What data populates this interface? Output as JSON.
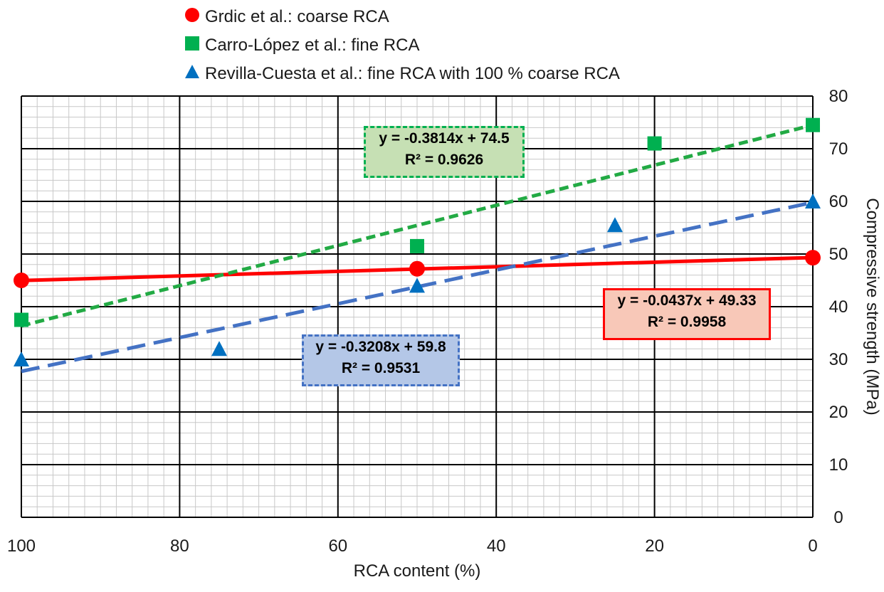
{
  "chart_data": {
    "type": "scatter",
    "xlabel": "RCA content (%)",
    "ylabel": "Compressive strength (MPa)",
    "xlim": [
      100,
      0
    ],
    "ylim": [
      0,
      80
    ],
    "x_reversed": true,
    "x_ticks": [
      "100",
      "80",
      "60",
      "40",
      "20",
      "0"
    ],
    "y_ticks": [
      "0",
      "10",
      "20",
      "30",
      "40",
      "50",
      "60",
      "70",
      "80"
    ],
    "y_axis_side": "right",
    "grid": true,
    "legend_position": "top",
    "series": [
      {
        "name": "Grdic et al.: coarse RCA",
        "marker": "circle",
        "color": "#ff0000",
        "points": [
          {
            "x": 100,
            "y": 45
          },
          {
            "x": 50,
            "y": 47.2
          },
          {
            "x": 0,
            "y": 49.3
          }
        ],
        "trendline": {
          "slope": -0.0437,
          "intercept": 49.33,
          "style": "solid",
          "color": "#ff0000",
          "equation": "y = -0.0437x + 49.33",
          "r2": "R² = 0.9958"
        }
      },
      {
        "name": "Carro-López et al.: fine RCA",
        "marker": "square",
        "color": "#00b050",
        "points": [
          {
            "x": 100,
            "y": 37.5
          },
          {
            "x": 50,
            "y": 51.5
          },
          {
            "x": 20,
            "y": 71
          },
          {
            "x": 0,
            "y": 74.5
          }
        ],
        "trendline": {
          "slope": -0.3814,
          "intercept": 74.5,
          "style": "dashed",
          "color": "#22aa44",
          "equation": "y = -0.3814x + 74.5",
          "r2": "R² = 0.9626"
        }
      },
      {
        "name": "Revilla-Cuesta et al.: fine RCA with 100 % coarse RCA",
        "marker": "triangle",
        "color": "#0070c0",
        "points": [
          {
            "x": 100,
            "y": 30
          },
          {
            "x": 75,
            "y": 32
          },
          {
            "x": 50,
            "y": 44
          },
          {
            "x": 25,
            "y": 55.5
          },
          {
            "x": 0,
            "y": 60
          }
        ],
        "trendline": {
          "slope": -0.3208,
          "intercept": 59.8,
          "style": "long-dashed",
          "color": "#4472c4",
          "equation": "y = -0.3208x + 59.8",
          "r2": "R² = 0.9531"
        }
      }
    ]
  },
  "colors": {
    "red_box_fill": "#f8c8b8",
    "green_box_fill": "#c6e0b4",
    "blue_box_fill": "#b4c7e7"
  }
}
